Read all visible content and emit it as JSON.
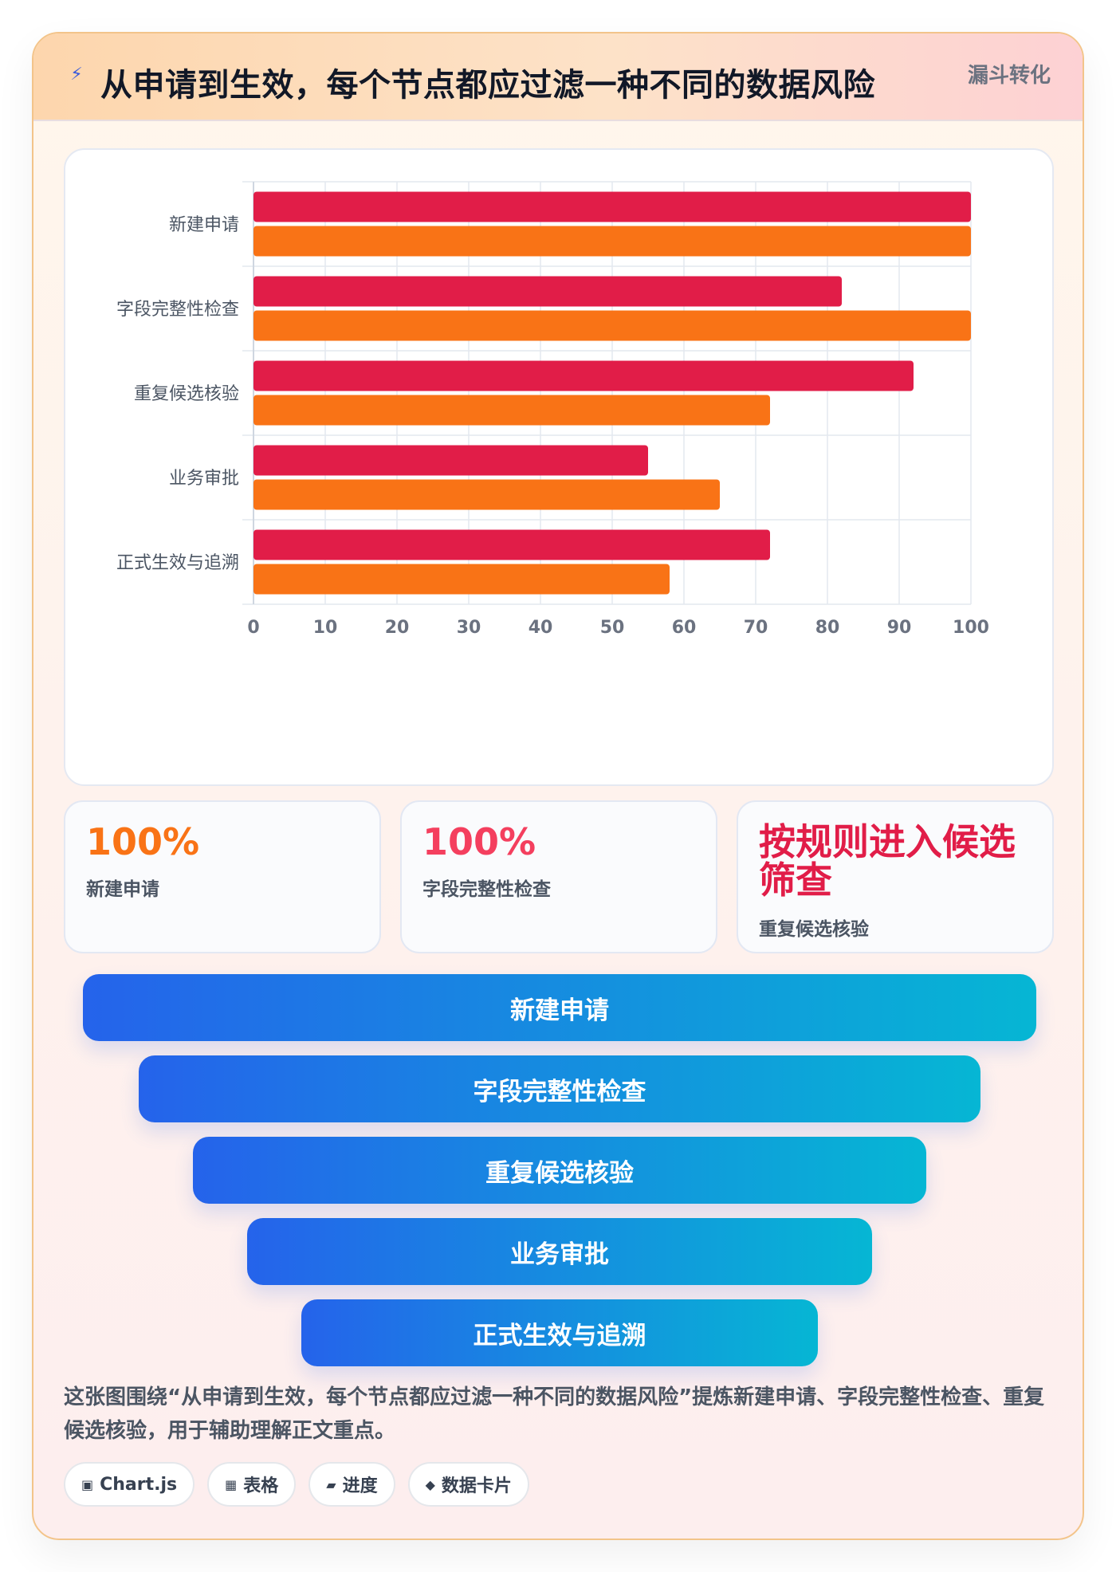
{
  "header": {
    "icon": "lightning-icon",
    "title": "从申请到生效，每个节点都应过滤一种不同的数据风险",
    "tag": "漏斗转化"
  },
  "chart_data": {
    "type": "bar",
    "orientation": "horizontal",
    "categories": [
      "新建申请",
      "字段完整性检查",
      "重复候选核验",
      "业务审批",
      "正式生效与追溯"
    ],
    "series": [
      {
        "color": "#e11d48",
        "values": [
          100,
          82,
          92,
          55,
          72
        ]
      },
      {
        "color": "#f97316",
        "values": [
          100,
          100,
          72,
          65,
          58
        ]
      }
    ],
    "xlim": [
      0,
      100
    ],
    "xticks": [
      0,
      10,
      20,
      30,
      40,
      50,
      60,
      70,
      80,
      90,
      100
    ],
    "grid": true
  },
  "stats": [
    {
      "value": "100%",
      "label": "新建申请",
      "color": "#f97316"
    },
    {
      "value": "100%",
      "label": "字段完整性检查",
      "color": "#f43f5e"
    },
    {
      "value": "按规则进入候选筛查",
      "label": "重复候选核验",
      "color": "#e11d48"
    }
  ],
  "funnel": [
    "新建申请",
    "字段完整性检查",
    "重复候选核验",
    "业务审批",
    "正式生效与追溯"
  ],
  "description": "这张图围绕“从申请到生效，每个节点都应过滤一种不同的数据风险”提炼新建申请、字段完整性检查、重复候选核验，用于辅助理解正文重点。",
  "chips": [
    {
      "icon": "chart-icon",
      "glyph": "▣",
      "label": "Chart.js"
    },
    {
      "icon": "table-icon",
      "glyph": "▦",
      "label": "表格"
    },
    {
      "icon": "progress-icon",
      "glyph": "▰",
      "label": "进度"
    },
    {
      "icon": "card-icon",
      "glyph": "◆",
      "label": "数据卡片"
    }
  ]
}
